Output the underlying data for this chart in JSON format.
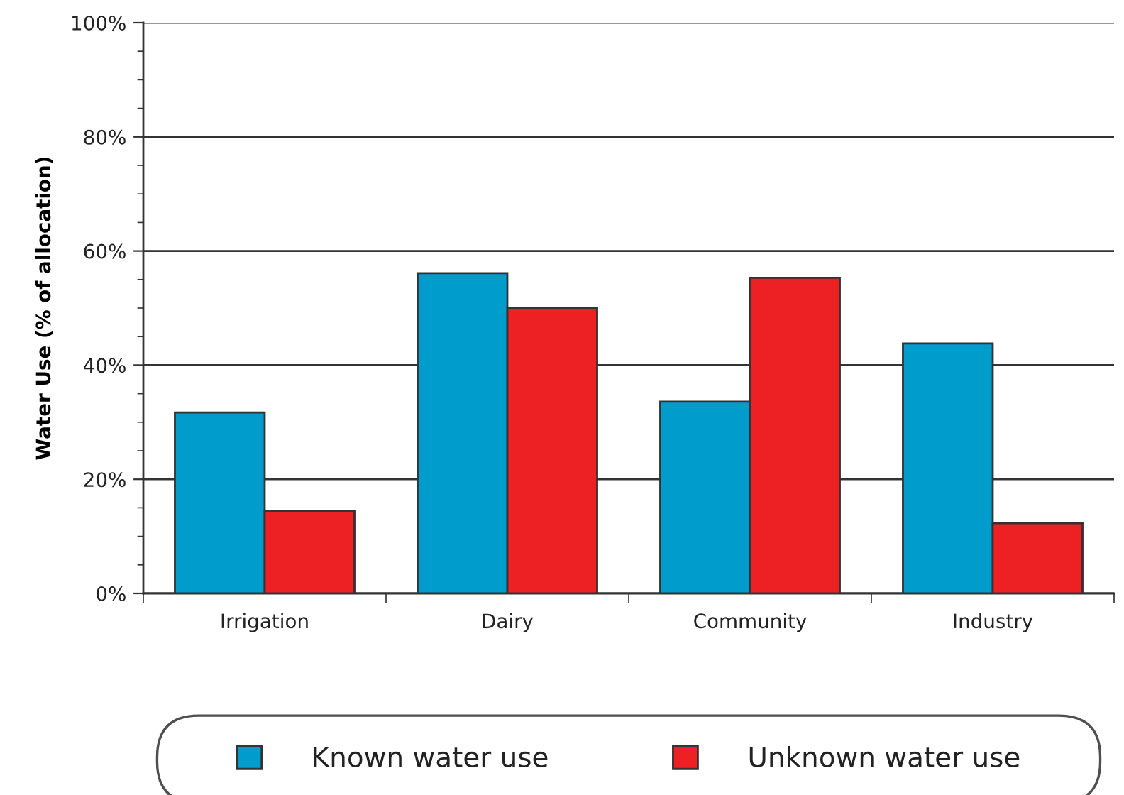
{
  "chart_data": {
    "type": "bar",
    "ylabel": "Water Use (% of allocation)",
    "categories": [
      "Irrigation",
      "Dairy",
      "Community",
      "Industry"
    ],
    "series": [
      {
        "name": "Known water use",
        "color": "#009ccc",
        "values": [
          31.7,
          56.1,
          33.6,
          43.8
        ]
      },
      {
        "name": "Unknown water use",
        "color": "#ed2024",
        "values": [
          14.4,
          50.0,
          55.3,
          12.3
        ]
      }
    ],
    "ylim": [
      0,
      100
    ],
    "yticks": [
      {
        "value": 0,
        "label": "0%"
      },
      {
        "value": 20,
        "label": "20%"
      },
      {
        "value": 40,
        "label": "40%"
      },
      {
        "value": 60,
        "label": "60%"
      },
      {
        "value": 80,
        "label": "80%"
      },
      {
        "value": 100,
        "label": "100%"
      }
    ],
    "grid": "y",
    "legend": "bottom"
  }
}
